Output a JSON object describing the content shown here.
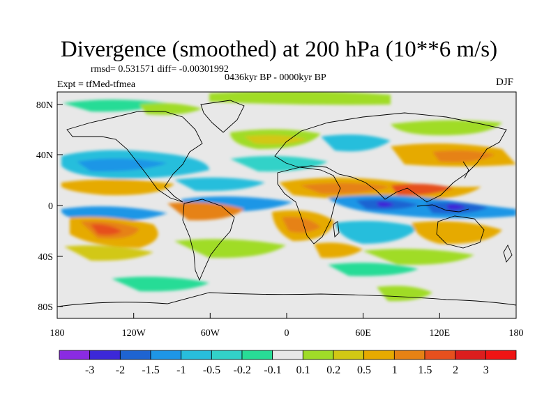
{
  "title": "Divergence (smoothed) at 200 hPa (10**6 m/s)",
  "stats_text": "rmsd= 0.531571 diff= -0.00301992",
  "period_text": "0436kyr BP - 0000kyr BP",
  "experiment_text": "Expt = tfMed-tfmea",
  "season": "DJF",
  "map": {
    "projection": "cylindrical-equidistant",
    "lon_range": [
      -180,
      180
    ],
    "lat_range": [
      -90,
      90
    ],
    "x_ticks": [
      "180",
      "120W",
      "60W",
      "0",
      "60E",
      "120E",
      "180"
    ],
    "y_ticks": [
      "80N",
      "40N",
      "0",
      "40S",
      "80S"
    ],
    "background_color": "#e8e8e8"
  },
  "colorbar": {
    "labels": [
      "-3",
      "-2",
      "-1.5",
      "-1",
      "-0.5",
      "-0.2",
      "-0.1",
      "0.1",
      "0.2",
      "0.5",
      "1",
      "1.5",
      "2",
      "3"
    ],
    "colors": [
      "#8a2be2",
      "#3c28d8",
      "#1e64d2",
      "#1e96e6",
      "#28bedc",
      "#32d2c8",
      "#28dc96",
      "#e8e8e8",
      "#a0dc28",
      "#d2c814",
      "#e6aa00",
      "#e68214",
      "#e6501e",
      "#dc1e1e",
      "#f01414"
    ]
  }
}
